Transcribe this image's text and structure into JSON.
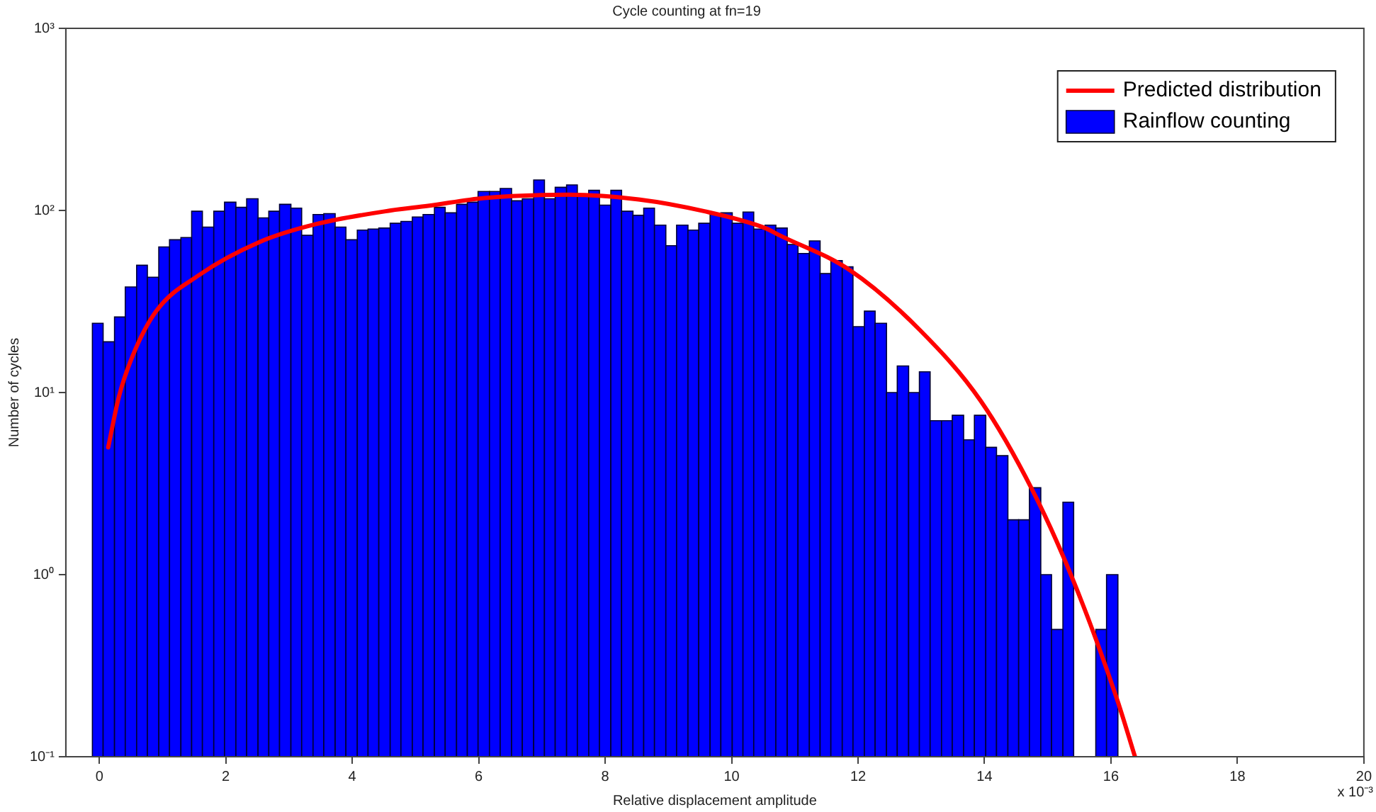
{
  "chart_data": {
    "type": "histogram",
    "title": "Cycle counting at fn=19",
    "xlabel": "Relative displacement amplitude",
    "ylabel": "Number of cycles",
    "annotations": [
      "x 10⁻³"
    ],
    "log": "y",
    "grid": false,
    "legend": "top right",
    "xlim": [
      -0.53,
      20
    ],
    "xticks": [
      0,
      2,
      4,
      6,
      8,
      10,
      12,
      14,
      16,
      18,
      20
    ],
    "ylim": [
      0.1,
      1000
    ],
    "yticks": [
      {
        "value": 0.1,
        "label": "10⁻¹"
      },
      {
        "value": 1,
        "label": "10⁰"
      },
      {
        "value": 10,
        "label": "10¹"
      },
      {
        "value": 100,
        "label": "10²"
      },
      {
        "value": 1000,
        "label": "10³"
      }
    ],
    "bins": [
      -0.11,
      0.06,
      0.24,
      0.41,
      0.59,
      0.76,
      0.94,
      1.11,
      1.29,
      1.46,
      1.63,
      1.81,
      1.98,
      2.16,
      2.33,
      2.51,
      2.68,
      2.85,
      3.03,
      3.2,
      3.38,
      3.55,
      3.73,
      3.9,
      4.08,
      4.25,
      4.42,
      4.6,
      4.77,
      4.95,
      5.12,
      5.3,
      5.47,
      5.65,
      5.82,
      5.99,
      6.17,
      6.34,
      6.52,
      6.69,
      6.87,
      7.04,
      7.21,
      7.39,
      7.56,
      7.74,
      7.91,
      8.09,
      8.26,
      8.44,
      8.61,
      8.78,
      8.96,
      9.13,
      9.31,
      9.48,
      9.66,
      9.83,
      10.01,
      10.18,
      10.35,
      10.53,
      10.7,
      10.88,
      11.05,
      11.23,
      11.4,
      11.57,
      11.75,
      11.92,
      12.1,
      12.27,
      12.45,
      12.62,
      12.8,
      12.97,
      13.14,
      13.32,
      13.49,
      13.67,
      13.84,
      14.02,
      14.19,
      14.37,
      14.54,
      14.71,
      14.89,
      15.06,
      15.24,
      15.41,
      15.76,
      15.93,
      16.11
    ],
    "series": [
      {
        "name": "Predicted distribution",
        "type": "line",
        "color": "#ff0000",
        "x": [
          0.14,
          0.31,
          0.53,
          0.9,
          1.57,
          2.53,
          3.42,
          4.61,
          5.2,
          6.09,
          7.42,
          8.53,
          9.57,
          10.53,
          10.76,
          11.87,
          12.98,
          13.94,
          14.76,
          15.42,
          16.09,
          16.38
        ],
        "values": [
          5,
          9.5,
          16,
          28,
          44,
          67,
          84,
          100,
          106,
          117,
          122,
          115,
          99,
          80,
          73,
          47,
          22,
          9,
          2.9,
          0.9,
          0.21,
          0.1
        ]
      },
      {
        "name": "Rainflow counting",
        "color": "#0000ff",
        "values": [
          24,
          19,
          26,
          38,
          50,
          43,
          63,
          69,
          71,
          99,
          81,
          99,
          111,
          104,
          116,
          91,
          99,
          108,
          103,
          73,
          95,
          96,
          81,
          69,
          78,
          79,
          80,
          85,
          87,
          92,
          95,
          104,
          97,
          108,
          111,
          127,
          127,
          132,
          113,
          116,
          147,
          116,
          134,
          138,
          123,
          129,
          107,
          129,
          99,
          94,
          103,
          83,
          64,
          83,
          78,
          85,
          95,
          97,
          85,
          98,
          79,
          83,
          80,
          65,
          58,
          68,
          45,
          53,
          49,
          23,
          28,
          24,
          10,
          14,
          10,
          13,
          7,
          7,
          7.5,
          5.5,
          7.5,
          5,
          4.5,
          2,
          2,
          3,
          1,
          0.5,
          2.5,
          null,
          0.5,
          1
        ]
      }
    ]
  }
}
